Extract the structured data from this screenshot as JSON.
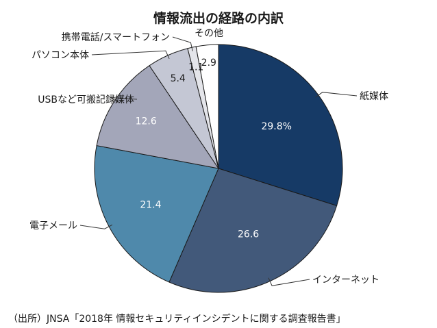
{
  "chart_data": {
    "type": "pie",
    "title": "情報流出の経路の内訳",
    "start_angle_deg": 0,
    "direction": "clockwise",
    "slices": [
      {
        "label": "紙媒体",
        "value": 29.8,
        "value_label": "29.8%",
        "color": "#163a66"
      },
      {
        "label": "インターネット",
        "value": 26.6,
        "value_label": "26.6",
        "color": "#42597a"
      },
      {
        "label": "電子メール",
        "value": 21.4,
        "value_label": "21.4",
        "color": "#4f89ab"
      },
      {
        "label": "USBなど可搬記録媒体",
        "value": 12.6,
        "value_label": "12.6",
        "color": "#a3a6b9"
      },
      {
        "label": "パソコン本体",
        "value": 5.4,
        "value_label": "5.4",
        "color": "#c4c7d4"
      },
      {
        "label": "携帯電話/スマートフォン",
        "value": 1.1,
        "value_label": "1.1",
        "color": "#e4e5ea"
      },
      {
        "label": "その他",
        "value": 2.9,
        "value_label": "2.9",
        "color": "#ffffff"
      }
    ],
    "source": "（出所）JNSA「2018年 情報セキュリティインシデントに関する調査報告書」"
  }
}
